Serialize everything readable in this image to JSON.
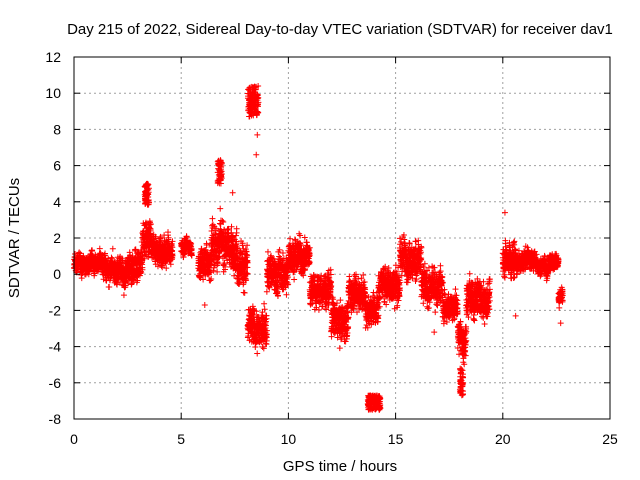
{
  "chart_data": {
    "type": "scatter",
    "title": "Day 215 of 2022, Sidereal Day-to-day VTEC variation (SDTVAR) for receiver dav1",
    "xlabel": "GPS time / hours",
    "ylabel": "SDTVAR / TECUs",
    "xlim": [
      0,
      25
    ],
    "ylim": [
      -8,
      12
    ],
    "xticks": [
      "0",
      "5",
      "10",
      "15",
      "20",
      "25"
    ],
    "yticks": [
      "-8",
      "-6",
      "-4",
      "-2",
      "0",
      "2",
      "4",
      "6",
      "8",
      "10",
      "12"
    ],
    "grid": true,
    "marker": "+",
    "color": "#ff0000",
    "series": [
      {
        "name": "SDTVAR",
        "segments": [
          {
            "x0": 0.0,
            "x1": 1.3,
            "center": 0.6,
            "spread": 1.0
          },
          {
            "x0": 1.3,
            "x1": 2.6,
            "center": 0.2,
            "spread": 1.8
          },
          {
            "x0": 2.6,
            "x1": 3.2,
            "center": 0.6,
            "spread": 2.0
          },
          {
            "x0": 3.2,
            "x1": 3.6,
            "center": 2.0,
            "spread": 2.4
          },
          {
            "x0": 3.6,
            "x1": 4.6,
            "center": 1.2,
            "spread": 2.0
          },
          {
            "x0": 5.0,
            "x1": 5.5,
            "center": 1.5,
            "spread": 0.8
          },
          {
            "x0": 5.8,
            "x1": 6.4,
            "center": 0.6,
            "spread": 2.0
          },
          {
            "x0": 6.4,
            "x1": 7.0,
            "center": 1.6,
            "spread": 3.0
          },
          {
            "x0": 7.0,
            "x1": 7.6,
            "center": 1.5,
            "spread": 2.6
          },
          {
            "x0": 7.6,
            "x1": 8.1,
            "center": 0.5,
            "spread": 3.0
          },
          {
            "x0": 8.1,
            "x1": 9.0,
            "center": -3.0,
            "spread": 2.6
          },
          {
            "x0": 9.0,
            "x1": 10.0,
            "center": 0.0,
            "spread": 2.6
          },
          {
            "x0": 10.0,
            "x1": 11.0,
            "center": 1.0,
            "spread": 2.2
          },
          {
            "x0": 11.0,
            "x1": 12.0,
            "center": -0.8,
            "spread": 2.0
          },
          {
            "x0": 12.0,
            "x1": 12.8,
            "center": -2.5,
            "spread": 2.6
          },
          {
            "x0": 12.8,
            "x1": 13.6,
            "center": -1.0,
            "spread": 2.0
          },
          {
            "x0": 13.6,
            "x1": 14.2,
            "center": -2.0,
            "spread": 2.2
          },
          {
            "x0": 14.2,
            "x1": 15.2,
            "center": -0.5,
            "spread": 2.4
          },
          {
            "x0": 15.2,
            "x1": 16.2,
            "center": 0.8,
            "spread": 2.6
          },
          {
            "x0": 16.2,
            "x1": 17.2,
            "center": -0.8,
            "spread": 2.4
          },
          {
            "x0": 17.2,
            "x1": 17.9,
            "center": -1.8,
            "spread": 1.6
          },
          {
            "x0": 17.9,
            "x1": 18.3,
            "center": -3.6,
            "spread": 2.6
          },
          {
            "x0": 18.3,
            "x1": 19.4,
            "center": -1.3,
            "spread": 2.6
          },
          {
            "x0": 20.0,
            "x1": 20.6,
            "center": 0.8,
            "spread": 2.2
          },
          {
            "x0": 20.6,
            "x1": 21.6,
            "center": 0.7,
            "spread": 1.2
          },
          {
            "x0": 21.6,
            "x1": 22.6,
            "center": 0.6,
            "spread": 1.0
          },
          {
            "x0": 22.6,
            "x1": 22.8,
            "center": -1.2,
            "spread": 0.8
          }
        ],
        "clusters": [
          {
            "x0": 8.1,
            "x1": 8.6,
            "y0": 8.7,
            "y1": 10.4
          },
          {
            "x0": 6.7,
            "x1": 6.9,
            "y0": 5.0,
            "y1": 6.3
          },
          {
            "x0": 3.3,
            "x1": 3.5,
            "y0": 3.8,
            "y1": 5.0
          },
          {
            "x0": 13.7,
            "x1": 14.3,
            "y0": -7.5,
            "y1": -6.7
          },
          {
            "x0": 18.0,
            "x1": 18.15,
            "y0": -6.7,
            "y1": -5.2
          }
        ],
        "outliers": [
          {
            "x": 8.55,
            "y": 7.7
          },
          {
            "x": 8.5,
            "y": 6.6
          },
          {
            "x": 7.4,
            "y": 4.5
          },
          {
            "x": 22.7,
            "y": -2.7
          },
          {
            "x": 20.6,
            "y": -2.3
          },
          {
            "x": 20.1,
            "y": 3.4
          },
          {
            "x": 6.1,
            "y": -1.7
          },
          {
            "x": 16.8,
            "y": -3.2
          }
        ]
      }
    ]
  }
}
